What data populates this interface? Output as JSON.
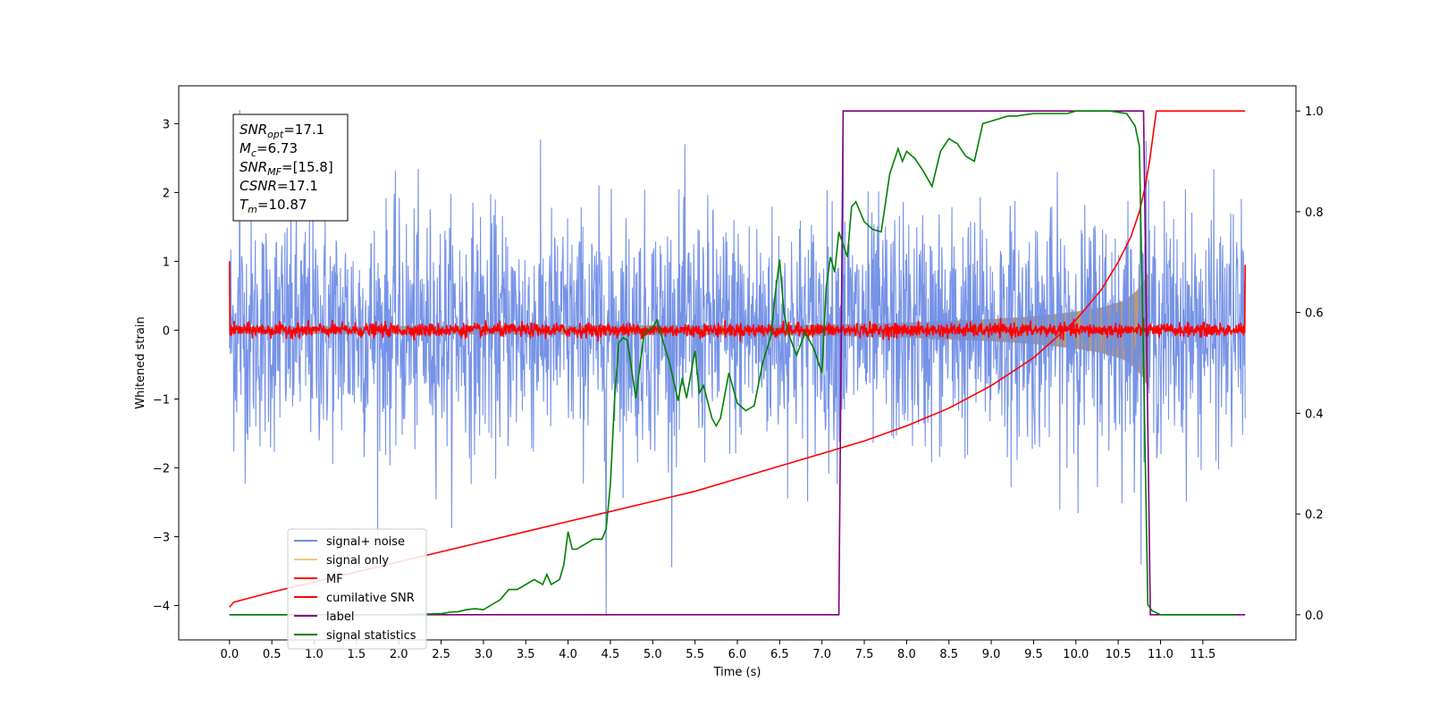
{
  "chart_data": {
    "type": "line",
    "xlabel": "Time (s)",
    "ylabel": "Whitened strain",
    "ylabel_right": "",
    "xlim": [
      -0.6,
      12.6
    ],
    "ylim": [
      -4.5,
      3.55
    ],
    "ylim_right": [
      -0.05,
      1.05
    ],
    "x_ticks": [
      0.0,
      0.5,
      1.0,
      1.5,
      2.0,
      2.5,
      3.0,
      3.5,
      4.0,
      4.5,
      5.0,
      5.5,
      6.0,
      6.5,
      7.0,
      7.5,
      8.0,
      8.5,
      9.0,
      9.5,
      10.0,
      10.5,
      11.0,
      11.5
    ],
    "x_tick_labels": [
      "0.0",
      "0.5",
      "1.0",
      "1.5",
      "2.0",
      "2.5",
      "3.0",
      "3.5",
      "4.0",
      "4.5",
      "5.0",
      "5.5",
      "6.0",
      "6.5",
      "7.0",
      "7.5",
      "8.0",
      "8.5",
      "9.0",
      "9.5",
      "10.0",
      "10.5",
      "11.0",
      "11.5"
    ],
    "y_ticks": [
      -4,
      -3,
      -2,
      -1,
      0,
      1,
      2,
      3
    ],
    "y_tick_labels": [
      "−4",
      "−3",
      "−2",
      "−1",
      "0",
      "1",
      "2",
      "3"
    ],
    "y2_ticks": [
      0.0,
      0.2,
      0.4,
      0.6,
      0.8,
      1.0
    ],
    "y2_tick_labels": [
      "0.0",
      "0.2",
      "0.4",
      "0.6",
      "0.8",
      "1.0"
    ],
    "legend_position": "lower-left",
    "grid": false,
    "series": [
      {
        "name": "signal+ noise",
        "axis": "left",
        "color": "#6f8de6",
        "kind": "noise",
        "x_range": [
          0.0,
          12.0
        ],
        "sigma": 0.85,
        "signal_amplitude": [
          [
            0.0,
            0.05
          ],
          [
            8.0,
            0.1
          ],
          [
            10.0,
            0.25
          ],
          [
            10.8,
            0.75
          ],
          [
            10.87,
            0.0
          ],
          [
            12.0,
            0.0
          ]
        ],
        "spikes": [
          {
            "x": 4.45,
            "y": -4.15
          },
          {
            "x": 7.25,
            "y": 3.2
          },
          {
            "x": 10.83,
            "y": 2.75
          },
          {
            "x": 0.12,
            "y": 3.2
          }
        ]
      },
      {
        "name": "signal only",
        "axis": "left",
        "color": "#f5c77e",
        "kind": "envelope",
        "fill_color": "#bb9b73",
        "points": [
          [
            0.0,
            0.05
          ],
          [
            7.0,
            0.08
          ],
          [
            8.0,
            0.11
          ],
          [
            9.0,
            0.16
          ],
          [
            9.5,
            0.2
          ],
          [
            10.0,
            0.27
          ],
          [
            10.3,
            0.33
          ],
          [
            10.55,
            0.42
          ],
          [
            10.7,
            0.55
          ],
          [
            10.8,
            0.7
          ],
          [
            10.86,
            0.85
          ],
          [
            10.87,
            0.0
          ],
          [
            12.0,
            0.0
          ]
        ]
      },
      {
        "name": "MF",
        "axis": "left",
        "color": "#ff0000",
        "kind": "noise",
        "x_range": [
          0.0,
          12.0
        ],
        "sigma": 0.05,
        "spikes": [
          {
            "x": 0.0,
            "y": 1.0
          },
          {
            "x": 12.0,
            "y": 0.95
          }
        ]
      },
      {
        "name": "cumilative SNR",
        "axis": "right",
        "color": "#ff0000",
        "kind": "line",
        "x": [
          0.0,
          0.05,
          0.5,
          1.0,
          1.5,
          2.0,
          2.5,
          3.0,
          3.5,
          4.0,
          4.5,
          5.0,
          5.5,
          6.0,
          6.5,
          7.0,
          7.5,
          8.0,
          8.5,
          9.0,
          9.5,
          10.0,
          10.3,
          10.5,
          10.65,
          10.75,
          10.82,
          10.87,
          10.95,
          11.5,
          12.0
        ],
        "y": [
          0.015,
          0.025,
          0.045,
          0.065,
          0.085,
          0.105,
          0.125,
          0.145,
          0.165,
          0.185,
          0.205,
          0.225,
          0.245,
          0.27,
          0.295,
          0.32,
          0.345,
          0.375,
          0.41,
          0.455,
          0.51,
          0.585,
          0.645,
          0.7,
          0.75,
          0.8,
          0.85,
          0.9,
          1.0,
          1.0,
          1.0
        ]
      },
      {
        "name": "label",
        "axis": "right",
        "color": "#800080",
        "kind": "line",
        "x": [
          0.0,
          7.2,
          7.25,
          10.8,
          10.88,
          12.0
        ],
        "y": [
          0.0,
          0.0,
          1.0,
          1.0,
          0.0,
          0.0
        ]
      },
      {
        "name": "signal statistics",
        "axis": "right",
        "color": "#008000",
        "kind": "line",
        "x": [
          0.0,
          0.5,
          1.0,
          1.5,
          2.0,
          2.5,
          2.6,
          2.7,
          2.8,
          2.9,
          3.0,
          3.1,
          3.2,
          3.3,
          3.4,
          3.5,
          3.6,
          3.7,
          3.75,
          3.8,
          3.9,
          3.95,
          4.0,
          4.05,
          4.1,
          4.2,
          4.3,
          4.4,
          4.45,
          4.5,
          4.55,
          4.6,
          4.65,
          4.7,
          4.8,
          4.9,
          5.0,
          5.05,
          5.1,
          5.2,
          5.3,
          5.35,
          5.4,
          5.5,
          5.55,
          5.6,
          5.7,
          5.75,
          5.8,
          5.9,
          6.0,
          6.1,
          6.2,
          6.3,
          6.4,
          6.45,
          6.5,
          6.55,
          6.6,
          6.7,
          6.8,
          6.9,
          7.0,
          7.05,
          7.1,
          7.15,
          7.2,
          7.3,
          7.35,
          7.4,
          7.5,
          7.6,
          7.7,
          7.8,
          7.9,
          7.95,
          8.0,
          8.1,
          8.2,
          8.3,
          8.4,
          8.5,
          8.6,
          8.7,
          8.8,
          8.9,
          9.0,
          9.1,
          9.2,
          9.3,
          9.5,
          9.7,
          9.9,
          10.0,
          10.2,
          10.4,
          10.6,
          10.7,
          10.75,
          10.8,
          10.85,
          10.9,
          11.0,
          11.5,
          11.9
        ],
        "y": [
          0.0,
          0.0,
          0.0,
          0.0,
          0.0,
          0.002,
          0.005,
          0.006,
          0.01,
          0.012,
          0.01,
          0.02,
          0.03,
          0.05,
          0.05,
          0.06,
          0.07,
          0.06,
          0.08,
          0.06,
          0.07,
          0.1,
          0.165,
          0.13,
          0.13,
          0.14,
          0.15,
          0.15,
          0.17,
          0.26,
          0.43,
          0.54,
          0.55,
          0.545,
          0.43,
          0.56,
          0.57,
          0.585,
          0.555,
          0.5,
          0.425,
          0.47,
          0.43,
          0.525,
          0.44,
          0.455,
          0.39,
          0.375,
          0.39,
          0.48,
          0.42,
          0.405,
          0.415,
          0.5,
          0.555,
          0.64,
          0.705,
          0.6,
          0.56,
          0.515,
          0.56,
          0.53,
          0.48,
          0.65,
          0.71,
          0.68,
          0.76,
          0.71,
          0.81,
          0.82,
          0.78,
          0.765,
          0.76,
          0.875,
          0.925,
          0.9,
          0.92,
          0.905,
          0.88,
          0.85,
          0.92,
          0.945,
          0.935,
          0.91,
          0.9,
          0.975,
          0.98,
          0.985,
          0.99,
          0.99,
          0.995,
          0.995,
          0.995,
          1.0,
          1.0,
          1.0,
          0.995,
          0.97,
          0.93,
          0.5,
          0.02,
          0.008,
          0.0,
          0.0,
          0.0
        ]
      }
    ],
    "annotation": {
      "lines": [
        {
          "var": "SNR",
          "sub": "opt",
          "value": "=17.1"
        },
        {
          "var": "M",
          "sub": "c",
          "value": "=6.73"
        },
        {
          "var": "SNR",
          "sub": "MF",
          "value": "=[15.8]"
        },
        {
          "var": "CSNR",
          "sub": "",
          "value": "=17.1"
        },
        {
          "var": "T",
          "sub": "m",
          "value": "=10.87"
        }
      ]
    }
  }
}
